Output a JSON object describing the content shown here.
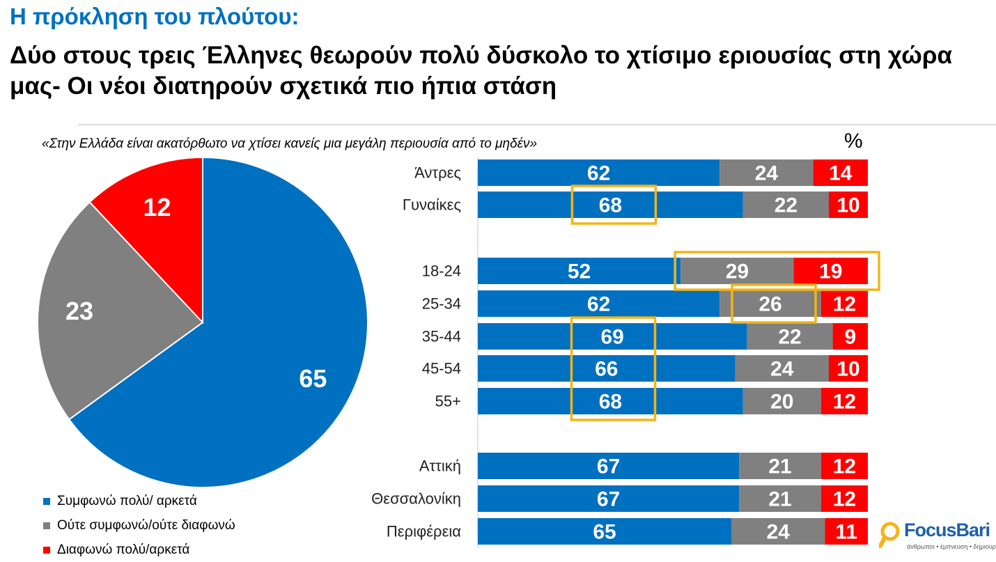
{
  "header": {
    "kicker": "Η πρόκληση του πλούτου:",
    "headline": "Δύο στους τρεις Έλληνες θεωρούν πολύ δύσκολο το χτίσιμο εριουσίας στη χώρα μας- Οι νέοι διατηρούν σχετικά πιο ήπια στάση"
  },
  "question": "«Στην Ελλάδα είναι ακατόρθωτο να χτίσει κανείς μια μεγάλη περιουσία από το μηδέν»",
  "unit_label": "%",
  "colors": {
    "agree": "#0070C0",
    "neutral": "#808080",
    "disagree": "#FF0000",
    "highlight": "#F2B418"
  },
  "chart_data": [
    {
      "type": "pie",
      "slices": [
        {
          "label": "Συμφωνώ πολύ/ αρκετά",
          "value": 65
        },
        {
          "label": "Ούτε συμφωνώ/ούτε διαφωνώ",
          "value": 23
        },
        {
          "label": "Διαφωνώ πολύ/αρκετά",
          "value": 12
        }
      ]
    },
    {
      "type": "bar",
      "orientation": "horizontal",
      "stacked": true,
      "categories": [
        "Άντρες",
        "Γυναίκες",
        "18-24",
        "25-34",
        "35-44",
        "45-54",
        "55+",
        "Αττική",
        "Θεσσαλονίκη",
        "Περιφέρεια"
      ],
      "series": [
        {
          "name": "Συμφωνώ πολύ/ αρκετά",
          "values": [
            62,
            68,
            52,
            62,
            69,
            66,
            68,
            67,
            67,
            65
          ]
        },
        {
          "name": "Ούτε συμφωνώ/ούτε διαφωνώ",
          "values": [
            24,
            22,
            29,
            26,
            22,
            24,
            20,
            21,
            21,
            24
          ]
        },
        {
          "name": "Διαφωνώ πολύ/αρκετά",
          "values": [
            14,
            10,
            19,
            12,
            9,
            10,
            12,
            12,
            12,
            11
          ]
        }
      ],
      "xlim": [
        0,
        100
      ],
      "highlighted": [
        {
          "categories": [
            "Γυναίκες"
          ],
          "series": "Συμφωνώ πολύ/ αρκετά"
        },
        {
          "categories": [
            "18-24"
          ],
          "series": [
            "Ούτε συμφωνώ/ούτε διαφωνώ",
            "Διαφωνώ πολύ/αρκετά"
          ]
        },
        {
          "categories": [
            "25-34"
          ],
          "series": "Ούτε συμφωνώ/ούτε διαφωνώ"
        },
        {
          "categories": [
            "35-44",
            "45-54",
            "55+"
          ],
          "series": "Συμφωνώ πολύ/ αρκετά"
        }
      ]
    }
  ],
  "legend": [
    {
      "label": "Συμφωνώ πολύ/ αρκετά",
      "color": "#0070C0"
    },
    {
      "label": "Ούτε συμφωνώ/ούτε διαφωνώ",
      "color": "#808080"
    },
    {
      "label": "Διαφωνώ πολύ/αρκετά",
      "color": "#FF0000"
    }
  ],
  "logo": {
    "name": "FocusBari",
    "tagline": "άνθρωποι • έμπνευση • δημιουργία"
  }
}
